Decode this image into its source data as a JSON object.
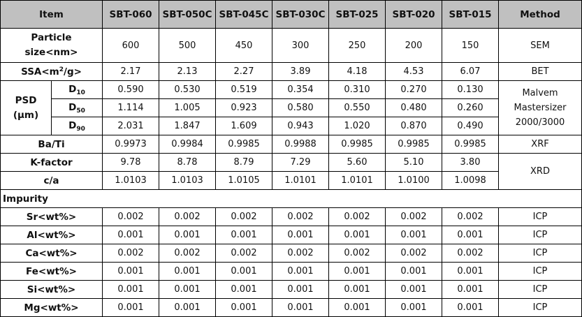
{
  "header": {
    "item": "Item",
    "columns": [
      "SBT-060",
      "SBT-050C",
      "SBT-045C",
      "SBT-030C",
      "SBT-025",
      "SBT-020",
      "SBT-015"
    ],
    "method": "Method"
  },
  "particle": {
    "label_1": "Particle",
    "label_2": "size<nm>",
    "values": [
      "600",
      "500",
      "450",
      "300",
      "250",
      "200",
      "150"
    ],
    "method": "SEM"
  },
  "ssa": {
    "label_pre": "SSA<m",
    "label_sup": "2",
    "label_post": "/g>",
    "values": [
      "2.17",
      "2.13",
      "2.27",
      "3.89",
      "4.18",
      "4.53",
      "6.07"
    ],
    "method": "BET"
  },
  "psd": {
    "label_1": "PSD",
    "label_2": "(μm)",
    "method_1": "Malvem",
    "method_2": "Mastersizer",
    "method_3": "2000/3000",
    "rows": [
      {
        "d": "D",
        "sub": "10",
        "values": [
          "0.590",
          "0.530",
          "0.519",
          "0.354",
          "0.310",
          "0.270",
          "0.130"
        ]
      },
      {
        "d": "D",
        "sub": "50",
        "values": [
          "1.114",
          "1.005",
          "0.923",
          "0.580",
          "0.550",
          "0.480",
          "0.260"
        ]
      },
      {
        "d": "D",
        "sub": "90",
        "values": [
          "2.031",
          "1.847",
          "1.609",
          "0.943",
          "1.020",
          "0.870",
          "0.490"
        ]
      }
    ]
  },
  "bati": {
    "label": "Ba/Ti",
    "values": [
      "0.9973",
      "0.9984",
      "0.9985",
      "0.9988",
      "0.9985",
      "0.9985",
      "0.9985"
    ],
    "method": "XRF"
  },
  "kfactor": {
    "label": "K-factor",
    "values": [
      "9.78",
      "8.78",
      "8.79",
      "7.29",
      "5.60",
      "5.10",
      "3.80"
    ],
    "method": "XRD"
  },
  "ca": {
    "label": "c/a",
    "values": [
      "1.0103",
      "1.0103",
      "1.0105",
      "1.0101",
      "1.0101",
      "1.0100",
      "1.0098"
    ]
  },
  "impurity": {
    "label": "Impurity",
    "rows": [
      {
        "label": "Sr<wt%>",
        "values": [
          "0.002",
          "0.002",
          "0.002",
          "0.002",
          "0.002",
          "0.002",
          "0.002"
        ],
        "method": "ICP"
      },
      {
        "label": "Al<wt%>",
        "values": [
          "0.001",
          "0.001",
          "0.001",
          "0.001",
          "0.001",
          "0.001",
          "0.001"
        ],
        "method": "ICP"
      },
      {
        "label": "Ca<wt%>",
        "values": [
          "0.002",
          "0.002",
          "0.002",
          "0.002",
          "0.002",
          "0.002",
          "0.002"
        ],
        "method": "ICP"
      },
      {
        "label": "Fe<wt%>",
        "values": [
          "0.001",
          "0.001",
          "0.001",
          "0.001",
          "0.001",
          "0.001",
          "0.001"
        ],
        "method": "ICP"
      },
      {
        "label": "Si<wt%>",
        "values": [
          "0.001",
          "0.001",
          "0.001",
          "0.001",
          "0.001",
          "0.001",
          "0.001"
        ],
        "method": "ICP"
      },
      {
        "label": "Mg<wt%>",
        "values": [
          "0.001",
          "0.001",
          "0.001",
          "0.001",
          "0.001",
          "0.001",
          "0.001"
        ],
        "method": "ICP"
      }
    ]
  },
  "colors": {
    "header_bg": "#c0c0c0",
    "border": "#000000"
  }
}
